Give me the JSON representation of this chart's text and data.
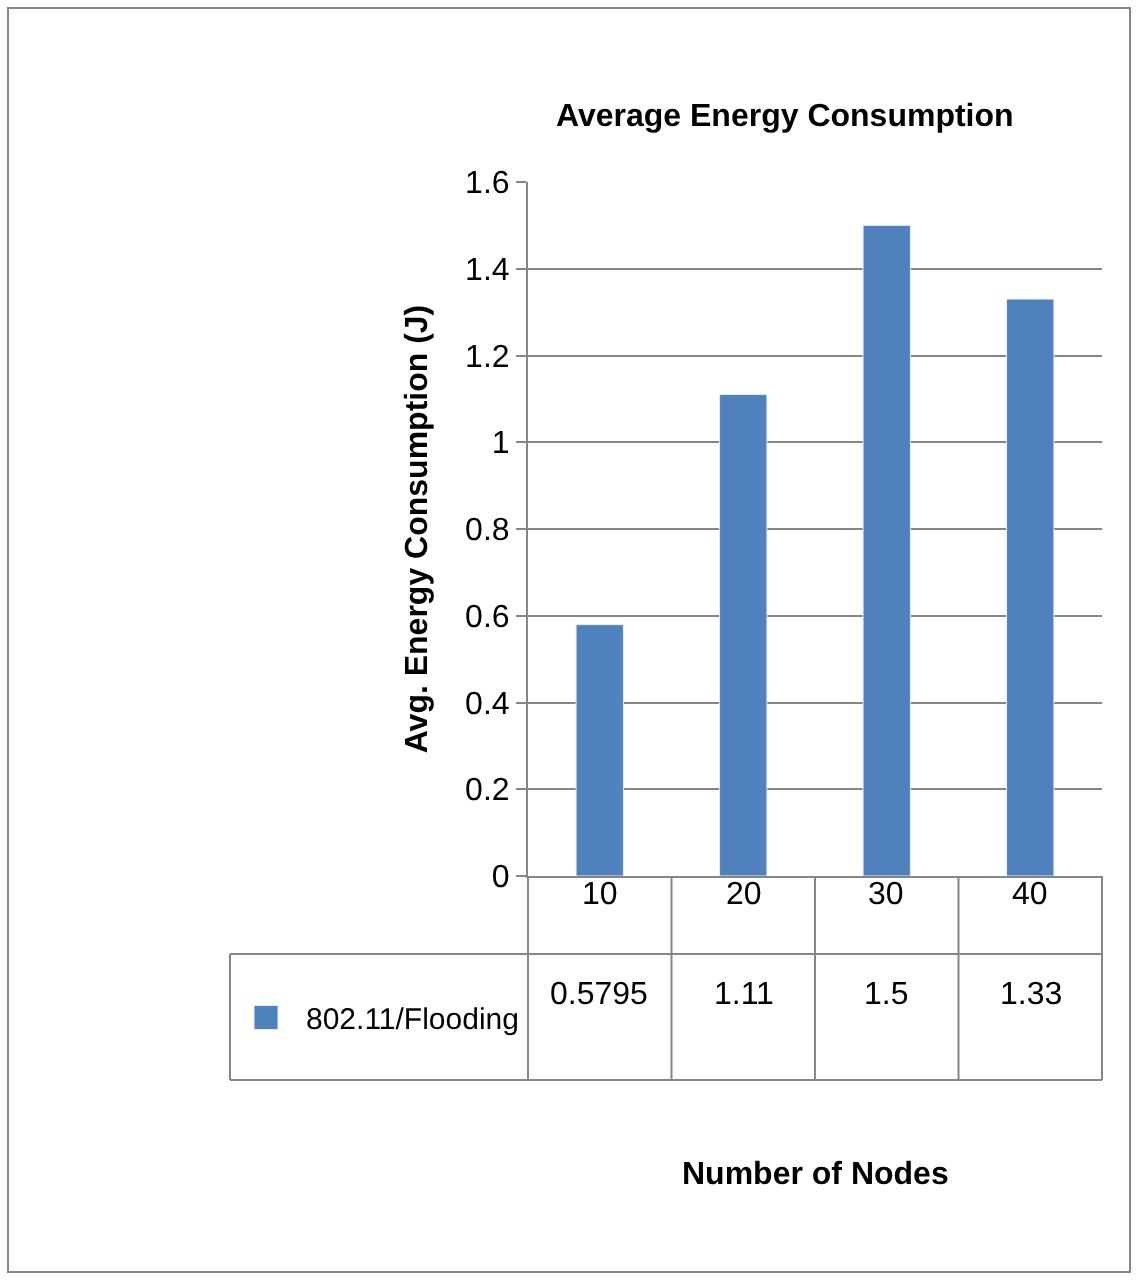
{
  "chart_data": {
    "type": "bar",
    "title": "Average Energy Consumption",
    "annotations": [
      "Number of Nodes"
    ],
    "ylabel": "Avg. Energy Consumption (J)",
    "categories": [
      "10",
      "20",
      "30",
      "40"
    ],
    "series": [
      {
        "name": "802.11/Flooding",
        "color": "#4f81bd",
        "values": [
          0.5795,
          1.11,
          1.5,
          1.33
        ]
      }
    ],
    "ylim": [
      0,
      1.6
    ],
    "yticks": [
      0,
      0.2,
      0.4,
      0.6,
      0.8,
      1,
      1.2,
      1.4,
      1.6
    ],
    "grid": "y",
    "data_labels": true,
    "legend": "bottom left"
  }
}
